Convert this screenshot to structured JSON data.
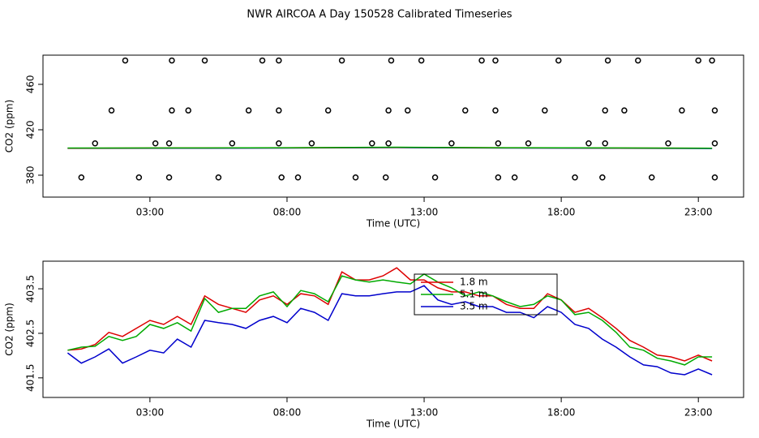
{
  "title": "NWR AIRCOA A  Day 150528  Calibrated Timeseries",
  "chart_data": [
    {
      "type": "line",
      "x_label": "Time (UTC)",
      "y_label": "CO2 (ppm)",
      "xlim": [
        -0.9,
        24.65
      ],
      "ylim": [
        360.7,
        485.7
      ],
      "xticks": [
        {
          "value": 3,
          "label": "03:00"
        },
        {
          "value": 8,
          "label": "08:00"
        },
        {
          "value": 13,
          "label": "13:00"
        },
        {
          "value": 18,
          "label": "18:00"
        },
        {
          "value": 23,
          "label": "23:00"
        }
      ],
      "yticks": [
        380,
        420,
        460
      ],
      "series": [
        {
          "color": "#0000cc",
          "style": "line",
          "x": [
            0,
            4,
            8,
            12,
            16,
            20,
            23.5
          ],
          "values": [
            403.6,
            403.7,
            403.9,
            404.3,
            403.9,
            403.7,
            403.5
          ]
        },
        {
          "color": "#dd0000",
          "style": "line",
          "x": [
            0,
            4,
            8,
            12,
            16,
            20,
            23.5
          ],
          "values": [
            403.8,
            404.0,
            404.1,
            404.5,
            404.1,
            403.9,
            403.7
          ]
        },
        {
          "color": "#00aa00",
          "style": "line",
          "x": [
            0,
            4,
            8,
            12,
            16,
            20,
            23.5
          ],
          "values": [
            403.9,
            404.0,
            404.2,
            404.6,
            404.2,
            404.0,
            403.8
          ]
        },
        {
          "color": "#000000",
          "style": "points",
          "x": [
            2.1,
            3.8,
            5.0,
            7.1,
            7.7,
            10.0,
            11.8,
            12.9,
            15.1,
            15.6,
            17.9,
            19.7,
            20.8,
            23.0,
            23.5,
            1.6,
            3.8,
            4.4,
            6.6,
            7.7,
            9.5,
            11.7,
            12.4,
            14.5,
            15.6,
            17.4,
            19.6,
            20.3,
            22.4,
            23.6,
            1.0,
            3.2,
            3.7,
            6.0,
            7.7,
            8.9,
            11.1,
            11.7,
            14.0,
            15.7,
            16.8,
            19.0,
            19.6,
            21.9,
            23.6,
            0.5,
            2.6,
            3.7,
            5.5,
            7.8,
            8.4,
            10.5,
            11.6,
            13.4,
            15.7,
            16.3,
            18.5,
            19.5,
            21.3,
            23.6
          ],
          "values": [
            481,
            481,
            481,
            481,
            481,
            481,
            481,
            481,
            481,
            481,
            481,
            481,
            481,
            481,
            481,
            437,
            437,
            437,
            437,
            437,
            437,
            437,
            437,
            437,
            437,
            437,
            437,
            437,
            437,
            437,
            408,
            408,
            408,
            408,
            408,
            408,
            408,
            408,
            408,
            408,
            408,
            408,
            408,
            408,
            408,
            378,
            378,
            378,
            378,
            378,
            378,
            378,
            378,
            378,
            378,
            378,
            378,
            378,
            378,
            378
          ]
        }
      ]
    },
    {
      "type": "line",
      "x_label": "Time (UTC)",
      "y_label": "CO2 (ppm)",
      "xlim": [
        -0.9,
        24.65
      ],
      "ylim": [
        401.06,
        404.12
      ],
      "xticks": [
        {
          "value": 3,
          "label": "03:00"
        },
        {
          "value": 8,
          "label": "08:00"
        },
        {
          "value": 13,
          "label": "13:00"
        },
        {
          "value": 18,
          "label": "18:00"
        },
        {
          "value": 23,
          "label": "23:00"
        }
      ],
      "yticks": [
        401.5,
        402.5,
        403.5
      ],
      "legend": "top",
      "x": [
        0,
        0.5,
        1,
        1.5,
        2,
        2.5,
        3,
        3.5,
        4,
        4.5,
        5,
        5.5,
        6,
        6.5,
        7,
        7.5,
        8,
        8.5,
        9,
        9.5,
        10,
        10.5,
        11,
        11.5,
        12,
        12.5,
        13,
        13.5,
        14,
        14.5,
        15,
        15.5,
        16,
        16.5,
        17,
        17.5,
        18,
        18.5,
        19,
        19.5,
        20,
        20.5,
        21,
        21.5,
        22,
        22.5,
        23,
        23.5
      ],
      "series": [
        {
          "name": "1.8 m",
          "color": "#dd0000",
          "style": "line",
          "values": [
            402.12,
            402.15,
            402.25,
            402.52,
            402.43,
            402.61,
            402.79,
            402.7,
            402.88,
            402.7,
            403.34,
            403.15,
            403.06,
            402.97,
            403.25,
            403.34,
            403.15,
            403.39,
            403.34,
            403.15,
            403.88,
            403.7,
            403.7,
            403.79,
            403.97,
            403.7,
            403.7,
            403.52,
            403.43,
            403.43,
            403.34,
            403.34,
            403.15,
            403.06,
            403.06,
            403.39,
            403.25,
            402.97,
            403.06,
            402.85,
            402.61,
            402.34,
            402.19,
            402.01,
            401.97,
            401.88,
            402.01,
            401.88
          ]
        },
        {
          "name": "5.1 m",
          "color": "#00aa00",
          "style": "line",
          "values": [
            402.12,
            402.19,
            402.21,
            402.43,
            402.34,
            402.43,
            402.7,
            402.61,
            402.74,
            402.55,
            403.28,
            402.97,
            403.06,
            403.06,
            403.34,
            403.43,
            403.1,
            403.46,
            403.39,
            403.21,
            403.79,
            403.7,
            403.65,
            403.7,
            403.65,
            403.61,
            403.83,
            403.65,
            403.52,
            403.34,
            403.43,
            403.34,
            403.21,
            403.1,
            403.15,
            403.34,
            403.25,
            402.92,
            402.97,
            402.79,
            402.52,
            402.19,
            402.12,
            401.94,
            401.88,
            401.79,
            401.97,
            401.97
          ]
        },
        {
          "name": "3.5 m",
          "color": "#0000cc",
          "style": "line",
          "values": [
            402.06,
            401.83,
            401.97,
            402.15,
            401.83,
            401.97,
            402.12,
            402.06,
            402.37,
            402.19,
            402.79,
            402.74,
            402.7,
            402.61,
            402.79,
            402.88,
            402.74,
            403.06,
            402.97,
            402.79,
            403.39,
            403.34,
            403.34,
            403.39,
            403.43,
            403.43,
            403.57,
            403.25,
            403.15,
            403.21,
            403.1,
            403.1,
            402.97,
            402.97,
            402.85,
            403.1,
            402.97,
            402.7,
            402.61,
            402.37,
            402.19,
            401.97,
            401.79,
            401.75,
            401.61,
            401.57,
            401.7,
            401.57
          ]
        }
      ]
    }
  ]
}
